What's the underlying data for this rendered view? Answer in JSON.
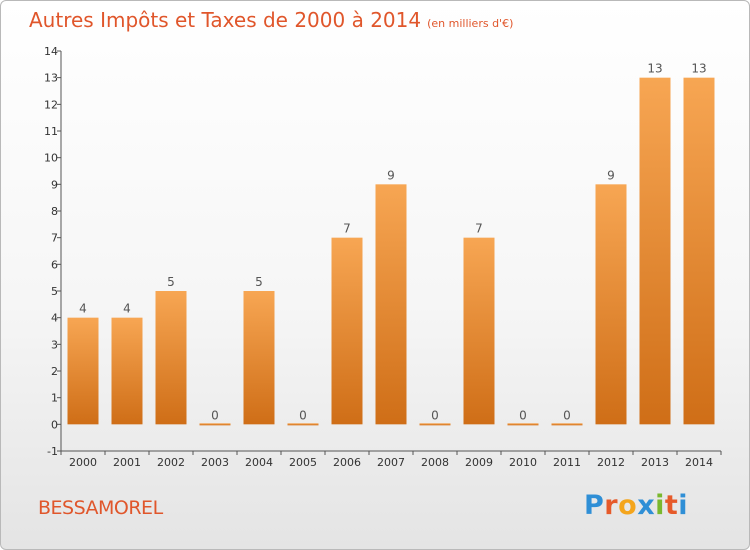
{
  "chart_data": {
    "type": "bar",
    "title": "Autres Impôts et Taxes de 2000 à 2014",
    "subtitle": "(en milliers d'€)",
    "categories": [
      "2000",
      "2001",
      "2002",
      "2003",
      "2004",
      "2005",
      "2006",
      "2007",
      "2008",
      "2009",
      "2010",
      "2011",
      "2012",
      "2013",
      "2014"
    ],
    "values": [
      4,
      4,
      5,
      0,
      5,
      0,
      7,
      9,
      0,
      7,
      0,
      0,
      9,
      13,
      13
    ],
    "ylim": [
      -1,
      14
    ],
    "yticks": [
      "-1",
      "0",
      "1",
      "2",
      "3",
      "4",
      "5",
      "6",
      "7",
      "8",
      "9",
      "10",
      "11",
      "12",
      "13",
      "14"
    ],
    "xlabel": "",
    "ylabel": "",
    "bar_color": "#f28c2a",
    "grid": false
  },
  "footer": {
    "commune": "BESSAMOREL",
    "logo_text": "Proxiti"
  }
}
